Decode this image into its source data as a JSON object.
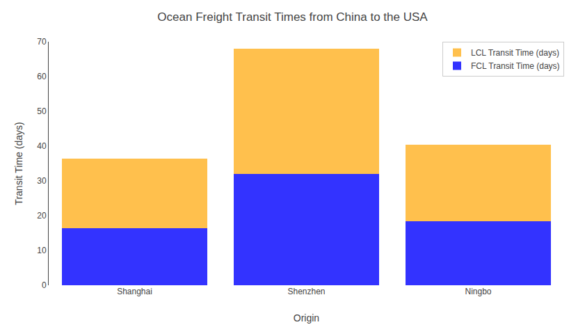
{
  "chart_data": {
    "type": "bar",
    "title": "Ocean Freight Transit Times from China to the USA",
    "xlabel": "Origin",
    "ylabel": "Transit Time (days)",
    "categories": [
      "Shanghai",
      "Shenzhen",
      "Ningbo"
    ],
    "series": [
      {
        "name": "FCL Transit Time (days)",
        "color": "#3333FF",
        "values": [
          16.5,
          32.0,
          18.5
        ]
      },
      {
        "name": "LCL Transit Time (days)",
        "color": "#FFC04D",
        "values": [
          20.0,
          36.0,
          22.0
        ]
      }
    ],
    "stacked": true,
    "ylim": [
      0,
      70
    ],
    "yticks": [
      0,
      10,
      20,
      30,
      40,
      50,
      60,
      70
    ],
    "grid": false,
    "legend": "upper right"
  }
}
